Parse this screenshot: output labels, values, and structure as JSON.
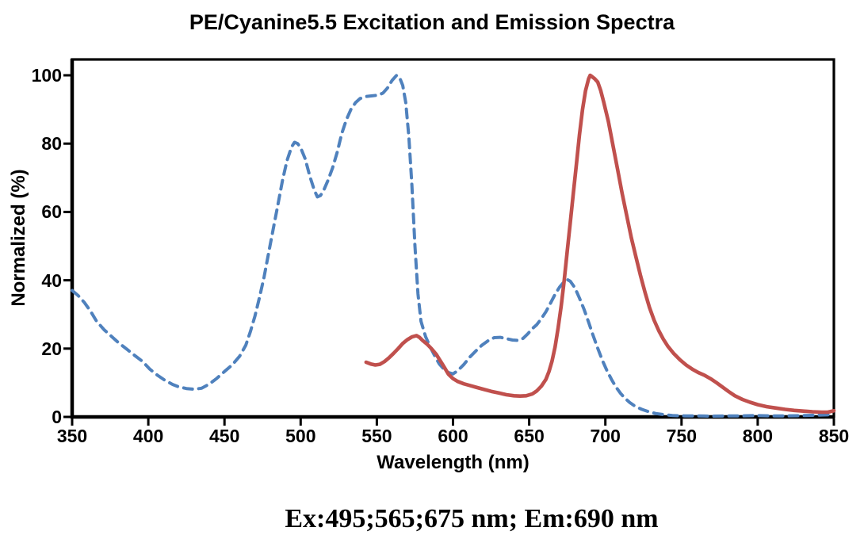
{
  "title": "PE/Cyanine5.5 Excitation and Emission Spectra",
  "caption": "Ex:495;565;675 nm; Em:690 nm",
  "colors": {
    "excitation": "#4f81bd",
    "emission": "#c0504d",
    "axis": "#000000",
    "background": "#ffffff"
  },
  "chart_data": {
    "type": "line",
    "title": "PE/Cyanine5.5 Excitation and Emission Spectra",
    "xlabel": "Wavelength (nm)",
    "ylabel": "Normalized (%)",
    "xlim": [
      350,
      850
    ],
    "ylim": [
      0,
      100
    ],
    "x_ticks": [
      350,
      400,
      450,
      500,
      550,
      600,
      650,
      700,
      750,
      800,
      850
    ],
    "y_ticks": [
      0,
      20,
      40,
      60,
      80,
      100
    ],
    "grid": false,
    "legend_position": "none",
    "series": [
      {
        "name": "Excitation (dashed)",
        "color": "#4f81bd",
        "line_style": "dashed",
        "points": [
          [
            350,
            37
          ],
          [
            354,
            35.5
          ],
          [
            358,
            33.5
          ],
          [
            362,
            31
          ],
          [
            366,
            28
          ],
          [
            371,
            25.5
          ],
          [
            376,
            23.5
          ],
          [
            381,
            21.5
          ],
          [
            386,
            19.8
          ],
          [
            391,
            18
          ],
          [
            396,
            16.3
          ],
          [
            401,
            14
          ],
          [
            406,
            12.2
          ],
          [
            411,
            10.7
          ],
          [
            416,
            9.5
          ],
          [
            420,
            8.8
          ],
          [
            425,
            8.3
          ],
          [
            430,
            8.1
          ],
          [
            435,
            8.4
          ],
          [
            440,
            9.6
          ],
          [
            445,
            11.3
          ],
          [
            450,
            13.3
          ],
          [
            455,
            15.2
          ],
          [
            460,
            17.8
          ],
          [
            464,
            21
          ],
          [
            467,
            25
          ],
          [
            470,
            29.5
          ],
          [
            473,
            35
          ],
          [
            476,
            41
          ],
          [
            479,
            48
          ],
          [
            482,
            55
          ],
          [
            485,
            62
          ],
          [
            488,
            69
          ],
          [
            491,
            75
          ],
          [
            494,
            79
          ],
          [
            496,
            80.4
          ],
          [
            498,
            80
          ],
          [
            500,
            78.8
          ],
          [
            503,
            75.5
          ],
          [
            506,
            70.5
          ],
          [
            509,
            66.3
          ],
          [
            511,
            64.4
          ],
          [
            513,
            64.8
          ],
          [
            515,
            66.2
          ],
          [
            518,
            69.3
          ],
          [
            521,
            73
          ],
          [
            524,
            77.5
          ],
          [
            527,
            83
          ],
          [
            530,
            87
          ],
          [
            533,
            90
          ],
          [
            536,
            92
          ],
          [
            539,
            93.2
          ],
          [
            543,
            93.8
          ],
          [
            547,
            94
          ],
          [
            551,
            94.2
          ],
          [
            554,
            94.8
          ],
          [
            557,
            96.3
          ],
          [
            560,
            98.5
          ],
          [
            563,
            100
          ],
          [
            565,
            99.3
          ],
          [
            567,
            97
          ],
          [
            569,
            92
          ],
          [
            571,
            82
          ],
          [
            573,
            68
          ],
          [
            575,
            50
          ],
          [
            577,
            36
          ],
          [
            579,
            28
          ],
          [
            582,
            23.5
          ],
          [
            585,
            20.5
          ],
          [
            588,
            17.9
          ],
          [
            591,
            15.5
          ],
          [
            594,
            14
          ],
          [
            597,
            13
          ],
          [
            600,
            12.6
          ],
          [
            603,
            13.5
          ],
          [
            607,
            15.3
          ],
          [
            611,
            17.5
          ],
          [
            615,
            19.3
          ],
          [
            619,
            21
          ],
          [
            623,
            22.3
          ],
          [
            627,
            23.2
          ],
          [
            631,
            23.3
          ],
          [
            635,
            22.9
          ],
          [
            639,
            22.5
          ],
          [
            643,
            22.4
          ],
          [
            646,
            23
          ],
          [
            649,
            24.3
          ],
          [
            652,
            25.8
          ],
          [
            655,
            27
          ],
          [
            658,
            28.8
          ],
          [
            661,
            30.8
          ],
          [
            664,
            33.3
          ],
          [
            667,
            35.9
          ],
          [
            670,
            38
          ],
          [
            673,
            39.6
          ],
          [
            675,
            40.2
          ],
          [
            677,
            39.7
          ],
          [
            680,
            37.8
          ],
          [
            683,
            34.8
          ],
          [
            686,
            31.5
          ],
          [
            689,
            27.7
          ],
          [
            692,
            23.8
          ],
          [
            695,
            20.1
          ],
          [
            698,
            16.6
          ],
          [
            701,
            13.6
          ],
          [
            704,
            11
          ],
          [
            707,
            8.7
          ],
          [
            710,
            6.9
          ],
          [
            713,
            5.4
          ],
          [
            716,
            4.2
          ],
          [
            720,
            3
          ],
          [
            724,
            2.2
          ],
          [
            728,
            1.6
          ],
          [
            733,
            1
          ],
          [
            738,
            0.7
          ],
          [
            744,
            0.4
          ],
          [
            752,
            0.3
          ],
          [
            760,
            0.3
          ],
          [
            770,
            0.2
          ],
          [
            780,
            0.3
          ],
          [
            790,
            0.3
          ],
          [
            800,
            0.4
          ],
          [
            810,
            0.3
          ],
          [
            820,
            0.3
          ],
          [
            830,
            0.4
          ],
          [
            840,
            0.5
          ],
          [
            846,
            0.6
          ],
          [
            850,
            0.8
          ]
        ]
      },
      {
        "name": "Emission (solid)",
        "color": "#c0504d",
        "line_style": "solid",
        "points": [
          [
            543,
            16
          ],
          [
            546,
            15.5
          ],
          [
            549,
            15.2
          ],
          [
            552,
            15.4
          ],
          [
            555,
            16.2
          ],
          [
            558,
            17.3
          ],
          [
            561,
            18.6
          ],
          [
            564,
            20
          ],
          [
            567,
            21.5
          ],
          [
            570,
            22.6
          ],
          [
            573,
            23.4
          ],
          [
            576,
            23.8
          ],
          [
            578,
            23.3
          ],
          [
            580,
            22.4
          ],
          [
            583,
            21.3
          ],
          [
            586,
            19.9
          ],
          [
            589,
            18.3
          ],
          [
            591,
            16.9
          ],
          [
            593,
            15.5
          ],
          [
            595,
            14
          ],
          [
            597,
            12.5
          ],
          [
            600,
            11.2
          ],
          [
            603,
            10.4
          ],
          [
            607,
            9.7
          ],
          [
            611,
            9.2
          ],
          [
            615,
            8.7
          ],
          [
            620,
            8.1
          ],
          [
            625,
            7.5
          ],
          [
            630,
            7
          ],
          [
            635,
            6.5
          ],
          [
            640,
            6.2
          ],
          [
            644,
            6.1
          ],
          [
            648,
            6.2
          ],
          [
            652,
            6.7
          ],
          [
            655,
            7.6
          ],
          [
            658,
            9
          ],
          [
            661,
            11
          ],
          [
            663,
            13.3
          ],
          [
            665,
            16.3
          ],
          [
            667,
            20.5
          ],
          [
            669,
            26
          ],
          [
            671,
            32.5
          ],
          [
            673,
            40
          ],
          [
            675,
            48.5
          ],
          [
            677,
            57
          ],
          [
            679,
            65.5
          ],
          [
            681,
            74
          ],
          [
            683,
            82.5
          ],
          [
            685,
            90
          ],
          [
            687,
            95.5
          ],
          [
            689,
            99
          ],
          [
            690,
            100
          ],
          [
            691,
            99.7
          ],
          [
            693,
            99
          ],
          [
            695,
            98
          ],
          [
            697,
            95.5
          ],
          [
            699,
            92
          ],
          [
            702,
            86.5
          ],
          [
            705,
            79.5
          ],
          [
            708,
            72.5
          ],
          [
            711,
            65.5
          ],
          [
            714,
            59
          ],
          [
            717,
            52.5
          ],
          [
            720,
            47
          ],
          [
            723,
            41.5
          ],
          [
            726,
            36.5
          ],
          [
            729,
            32
          ],
          [
            732,
            28.3
          ],
          [
            735,
            25.3
          ],
          [
            738,
            22.8
          ],
          [
            741,
            20.7
          ],
          [
            745,
            18.5
          ],
          [
            749,
            16.7
          ],
          [
            753,
            15.2
          ],
          [
            757,
            14
          ],
          [
            761,
            13
          ],
          [
            765,
            12.2
          ],
          [
            769,
            11.2
          ],
          [
            773,
            10
          ],
          [
            777,
            8.7
          ],
          [
            781,
            7.4
          ],
          [
            785,
            6.2
          ],
          [
            790,
            5.1
          ],
          [
            795,
            4.3
          ],
          [
            800,
            3.6
          ],
          [
            806,
            3
          ],
          [
            812,
            2.6
          ],
          [
            818,
            2.2
          ],
          [
            824,
            1.9
          ],
          [
            830,
            1.7
          ],
          [
            836,
            1.5
          ],
          [
            842,
            1.4
          ],
          [
            846,
            1.4
          ],
          [
            850,
            1.8
          ]
        ]
      }
    ]
  }
}
